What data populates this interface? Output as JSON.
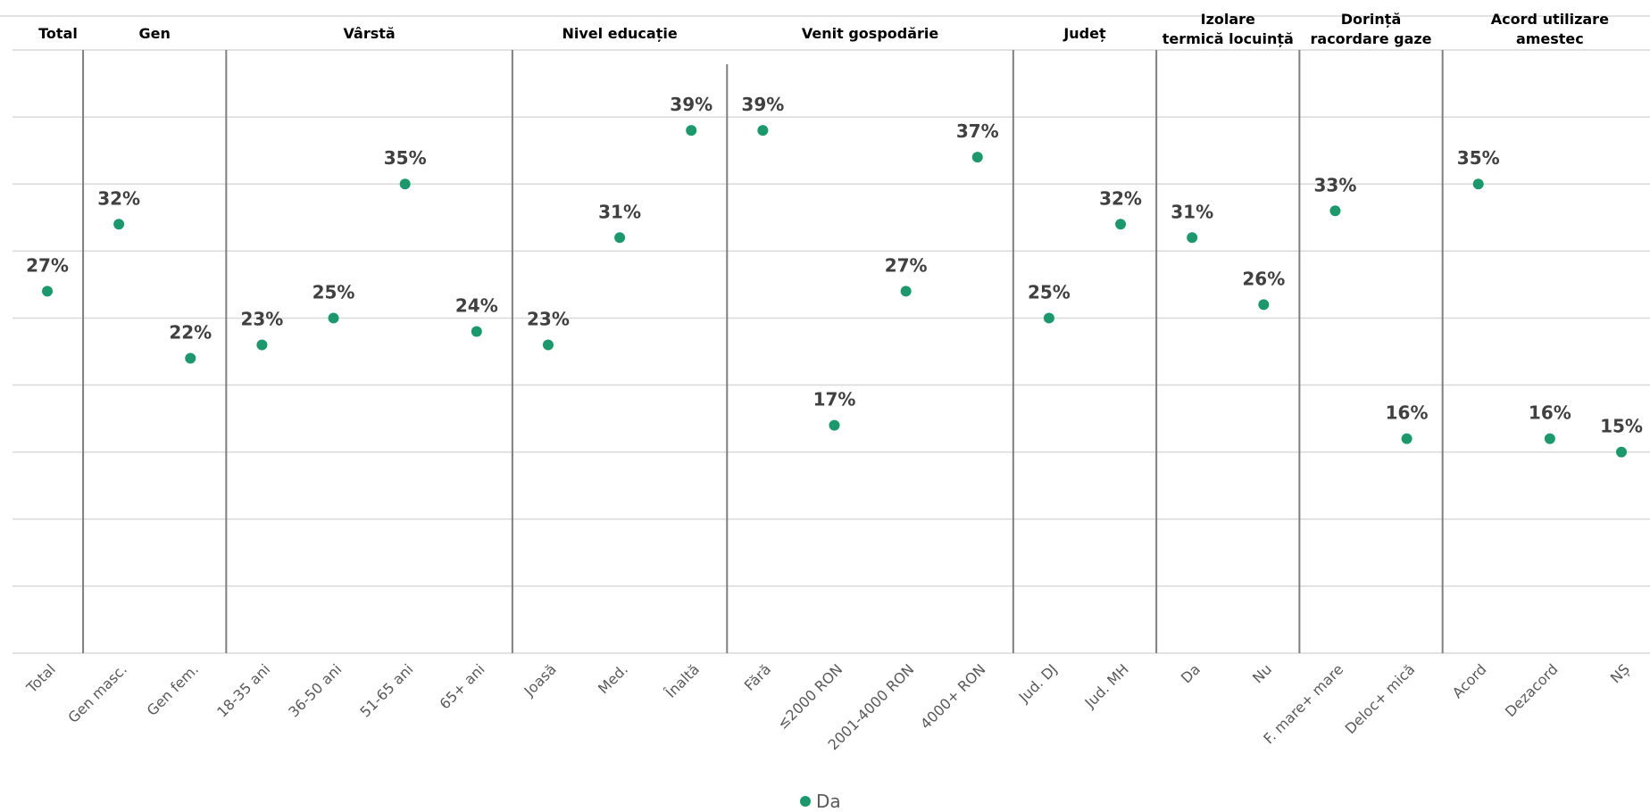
{
  "chart_data": {
    "type": "scatter",
    "categories": [
      "Total",
      "Gen masc.",
      "Gen fem.",
      "18-35 ani",
      "36-50 ani",
      "51-65 ani",
      "65+ ani",
      "Joasă",
      "Med.",
      "Înaltă",
      "Fără",
      "≤2000 RON",
      "2001-4000 RON",
      "4000+ RON",
      "Jud. DJ",
      "Jud. MH",
      "Da",
      "Nu",
      "F. mare+ mare",
      "Deloc+ mică",
      "Acord",
      "Dezacord",
      "NȘ"
    ],
    "series": [
      {
        "name": "Da",
        "values": [
          0.27,
          0.32,
          0.22,
          0.23,
          0.25,
          0.35,
          0.24,
          0.23,
          0.31,
          0.39,
          0.39,
          0.17,
          0.27,
          0.37,
          0.25,
          0.32,
          0.31,
          0.26,
          0.33,
          0.16,
          0.35,
          0.16,
          0.15
        ],
        "labels": [
          "27%",
          "32%",
          "22%",
          "23%",
          "25%",
          "35%",
          "24%",
          "23%",
          "31%",
          "39%",
          "39%",
          "17%",
          "27%",
          "37%",
          "25%",
          "32%",
          "31%",
          "26%",
          "33%",
          "16%",
          "35%",
          "16%",
          "15%"
        ],
        "color": "#1a9a6c"
      }
    ],
    "groups": [
      {
        "label": [
          "Total"
        ],
        "start": 0,
        "end": 0
      },
      {
        "label": [
          "Gen"
        ],
        "start": 1,
        "end": 2
      },
      {
        "label": [
          "Vârstă"
        ],
        "start": 3,
        "end": 6
      },
      {
        "label": [
          "Nivel educație"
        ],
        "start": 7,
        "end": 9
      },
      {
        "label": [
          "Venit gospodărie"
        ],
        "start": 10,
        "end": 13
      },
      {
        "label": [
          "Județ"
        ],
        "start": 14,
        "end": 15
      },
      {
        "label": [
          "Izolare",
          "termică locuință"
        ],
        "start": 16,
        "end": 17
      },
      {
        "label": [
          "Dorință",
          "racordare gaze"
        ],
        "start": 18,
        "end": 19
      },
      {
        "label": [
          "Acord utilizare",
          "amestec"
        ],
        "start": 20,
        "end": 22
      }
    ],
    "ylim": [
      0,
      0.45
    ],
    "grid": true,
    "legend": "bottom-center"
  }
}
